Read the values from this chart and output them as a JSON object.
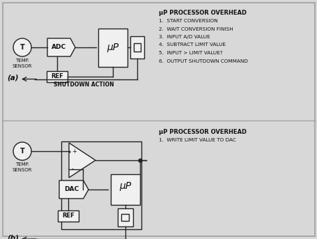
{
  "bg_color": "#d8d8d8",
  "box_color": "#f0f0f0",
  "line_color": "#222222",
  "text_color": "#111111",
  "title_a": "μP PROCESSOR OVERHEAD",
  "steps_a": [
    "1.  START CONVERSION",
    "2.  WAIT CONVERSION FINISH",
    "3.  INPUT A/D VALUE",
    "4.  SUBTRACT LIMIT VALUE",
    "5.  INPUT > LIMIT VALUE?",
    "6.  OUTPUT SHUTDOWN COMMAND"
  ],
  "title_b": "μP PROCESSOR OVERHEAD",
  "steps_b": [
    "1.  WRITE LIMIT VALUE TO DAC"
  ],
  "shutdown_label": "SHUTDOWN ACTION",
  "label_a": "(a)",
  "label_b": "(b)",
  "temp_label_1": "TEMP.",
  "temp_label_2": "SENSOR",
  "adc_label": "ADC",
  "ref_label": "REF",
  "up_label": "μP",
  "dac_label": "DAC",
  "t_label": "T",
  "figw": 4.56,
  "figh": 3.43,
  "dpi": 100
}
